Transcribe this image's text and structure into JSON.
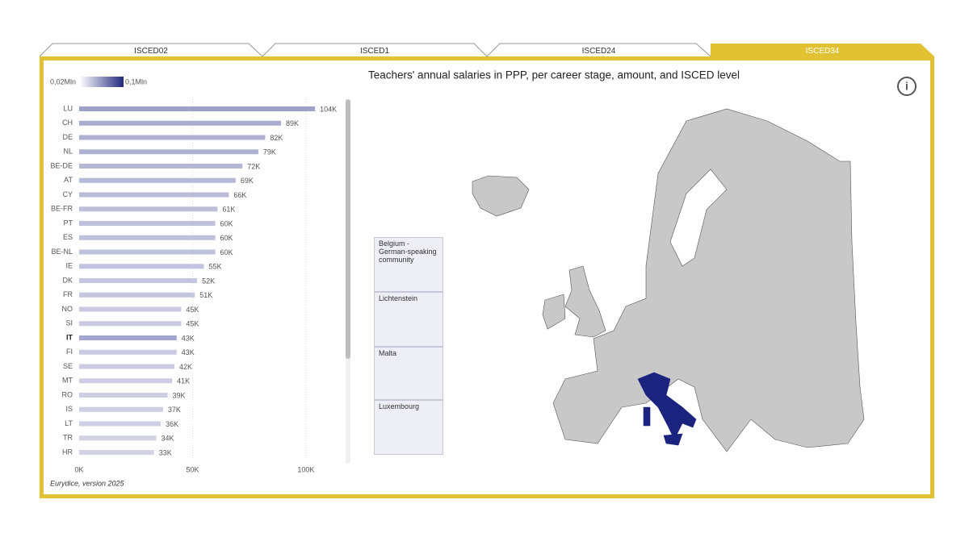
{
  "tabs": [
    "ISCED02",
    "ISCED1",
    "ISCED24",
    "ISCED34"
  ],
  "active_tab": 3,
  "legend": {
    "min_label": "0,02Mln",
    "max_label": "0,1Mln"
  },
  "chart_data": {
    "type": "bar",
    "orientation": "horizontal",
    "title": "Teachers' annual salaries in PPP, per career stage, amount, and ISCED level",
    "categories": [
      "LU",
      "CH",
      "DE",
      "NL",
      "BE-DE",
      "AT",
      "CY",
      "BE-FR",
      "PT",
      "ES",
      "BE-NL",
      "IE",
      "DK",
      "FR",
      "NO",
      "SI",
      "IT",
      "FI",
      "SE",
      "MT",
      "RO",
      "IS",
      "LT",
      "TR",
      "HR"
    ],
    "values": [
      104,
      89,
      82,
      79,
      72,
      69,
      66,
      61,
      60,
      60,
      60,
      55,
      52,
      51,
      45,
      45,
      43,
      43,
      42,
      41,
      39,
      37,
      36,
      34,
      33
    ],
    "value_labels": [
      "104K",
      "89K",
      "82K",
      "79K",
      "72K",
      "69K",
      "66K",
      "61K",
      "60K",
      "60K",
      "60K",
      "55K",
      "52K",
      "51K",
      "45K",
      "45K",
      "43K",
      "43K",
      "42K",
      "41K",
      "39K",
      "37K",
      "36K",
      "34K",
      "33K"
    ],
    "highlight": "IT",
    "bar_colors": [
      "#e9e9f3",
      "#9a9dc8"
    ],
    "xlim": [
      0,
      110
    ],
    "xticks": [
      {
        "value": 0,
        "label": "0K"
      },
      {
        "value": 50,
        "label": "50K"
      },
      {
        "value": 100,
        "label": "100K"
      }
    ],
    "grid": true
  },
  "insets": [
    "Belgium - German-speaking community",
    "Lichtenstein",
    "Malta",
    "Luxembourg"
  ],
  "footer": "Eurydice, version 2025"
}
